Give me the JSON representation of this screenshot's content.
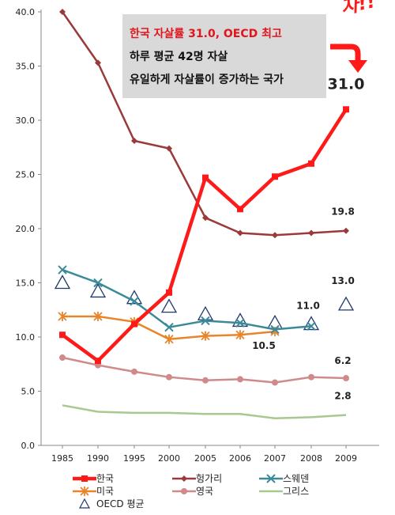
{
  "chart_data": {
    "type": "line",
    "x": [
      "1985",
      "1990",
      "1995",
      "2000",
      "2005",
      "2006",
      "2007",
      "2008",
      "2009"
    ],
    "ylim": [
      0,
      40
    ],
    "yticks": [
      "0.0",
      "5.0",
      "10.0",
      "15.0",
      "20.0",
      "25.0",
      "30.0",
      "35.0",
      "40.0"
    ],
    "grid": false,
    "legend_position": "bottom",
    "series": [
      {
        "name": "한국",
        "color": "#ff1a1a",
        "marker": "square",
        "values": [
          10.2,
          7.8,
          11.2,
          14.1,
          24.7,
          21.8,
          24.8,
          26.0,
          31.0
        ]
      },
      {
        "name": "헝가리",
        "color": "#9b3a3a",
        "marker": "diamond",
        "values": [
          40.0,
          35.3,
          28.1,
          27.4,
          21.0,
          19.6,
          19.4,
          19.6,
          19.8
        ]
      },
      {
        "name": "스웨덴",
        "color": "#3a8a9a",
        "marker": "x",
        "values": [
          16.2,
          15.0,
          13.3,
          10.9,
          11.5,
          11.3,
          10.7,
          11.0,
          null
        ]
      },
      {
        "name": "미국",
        "color": "#e8852a",
        "marker": "asterisk",
        "values": [
          11.9,
          11.9,
          11.4,
          9.8,
          10.1,
          10.2,
          10.5,
          null,
          null
        ]
      },
      {
        "name": "영국",
        "color": "#d08a8a",
        "marker": "circle",
        "values": [
          8.1,
          7.4,
          6.8,
          6.3,
          6.0,
          6.1,
          5.8,
          6.3,
          6.2
        ]
      },
      {
        "name": "그리스",
        "color": "#a8c890",
        "marker": "none",
        "values": [
          3.7,
          3.1,
          3.0,
          3.0,
          2.9,
          2.9,
          2.5,
          2.6,
          2.8
        ]
      },
      {
        "name": "OECD 평균",
        "color": "#1f3a6a",
        "marker": "triangle",
        "line": false,
        "values": [
          15.0,
          14.2,
          13.6,
          12.8,
          12.1,
          11.5,
          11.3,
          11.2,
          13.0
        ]
      }
    ],
    "annotations": [
      {
        "text": "31.0",
        "x": "2009",
        "y": 31.0,
        "color": "#ff1a1a"
      },
      {
        "text": "19.8",
        "x": "2009",
        "y": 19.8
      },
      {
        "text": "13.0",
        "x": "2009",
        "y": 13.0
      },
      {
        "text": "11.0",
        "x": "2008",
        "y": 11.0
      },
      {
        "text": "10.5",
        "x": "2007",
        "y": 10.5
      },
      {
        "text": "6.2",
        "x": "2009",
        "y": 6.2
      },
      {
        "text": "2.8",
        "x": "2009",
        "y": 2.8
      }
    ],
    "callout": {
      "lines": [
        "한국 자살률 31.0, OECD 최고",
        "하루 평균 42명 자살",
        "유일하게 자살률이 증가하는 국가"
      ],
      "first_line_color": "#e0161e",
      "arrow_color": "#ff1a1a",
      "corner_text": "자!!",
      "corner_color": "#ff1a1a"
    }
  }
}
